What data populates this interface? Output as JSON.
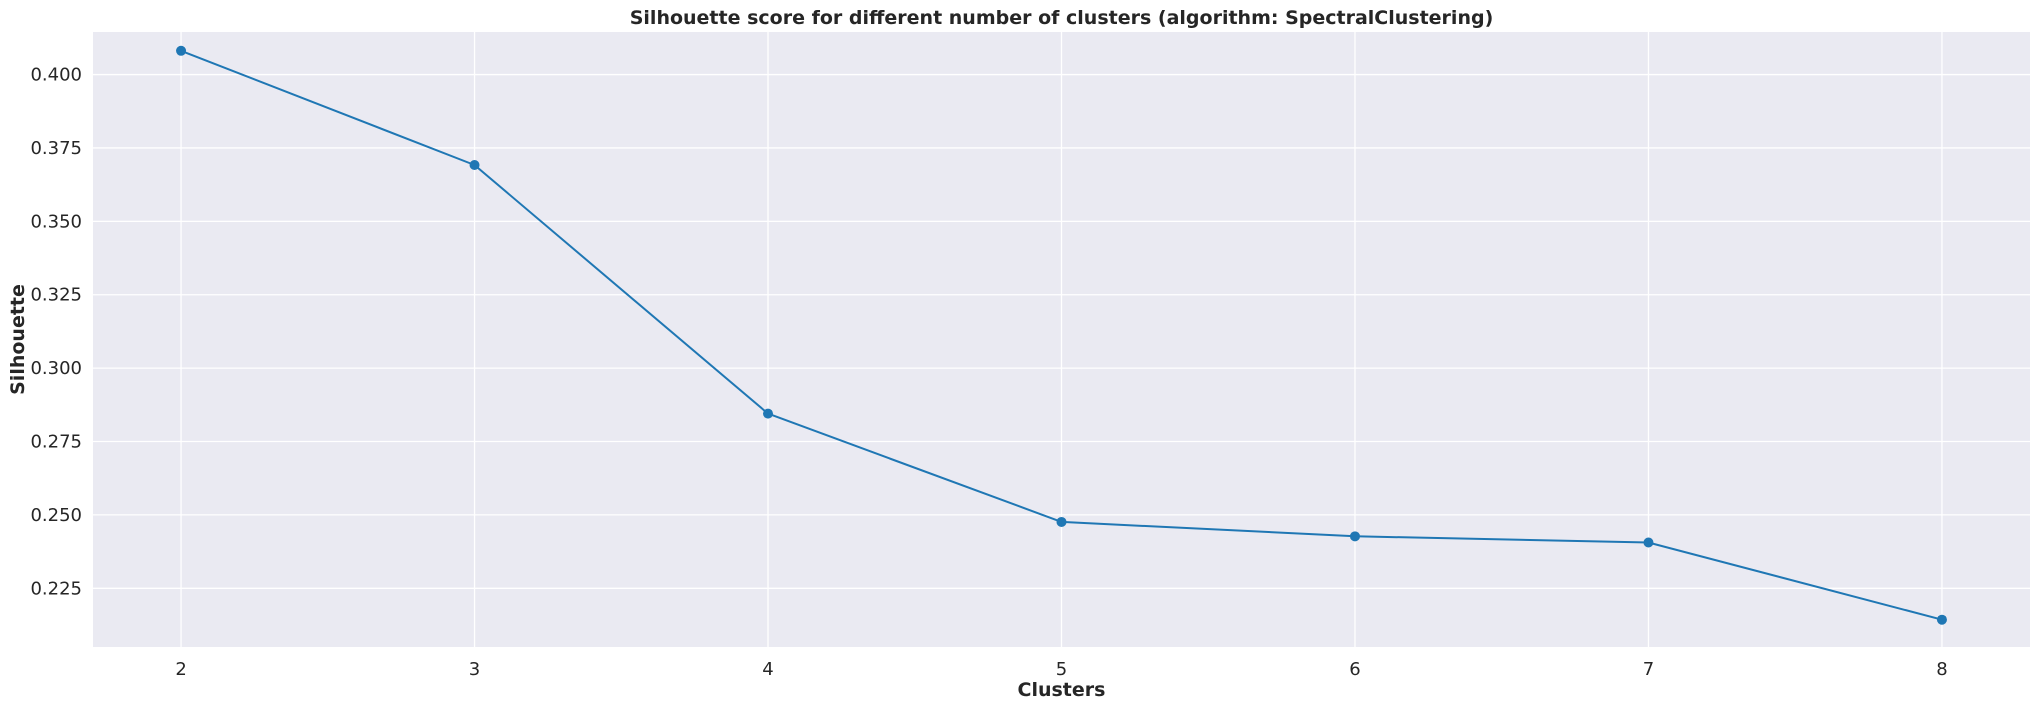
{
  "colors": {
    "background": "#ffffff",
    "plot_background": "#eaeaf2",
    "grid": "#ffffff",
    "series": "#1f77b4",
    "text": "#262626"
  },
  "chart_data": {
    "type": "line",
    "title": "Silhouette score for different number of clusters (algorithm: SpectralClustering)",
    "xlabel": "Clusters",
    "ylabel": "Silhouette",
    "xlim": [
      1.7,
      8.3
    ],
    "ylim": [
      0.205,
      0.4145
    ],
    "x_ticks": [
      2,
      3,
      4,
      5,
      6,
      7,
      8
    ],
    "y_ticks": [
      0.225,
      0.25,
      0.275,
      0.3,
      0.325,
      0.35,
      0.375,
      0.4
    ],
    "y_tick_labels": [
      "0.225",
      "0.250",
      "0.275",
      "0.300",
      "0.325",
      "0.350",
      "0.375",
      "0.400"
    ],
    "grid": true,
    "markers": true,
    "series": [
      {
        "x": [
          2,
          3,
          4,
          5,
          6,
          7,
          8
        ],
        "values": [
          0.4081,
          0.3692,
          0.2845,
          0.2476,
          0.2427,
          0.2406,
          0.2143
        ]
      }
    ]
  }
}
